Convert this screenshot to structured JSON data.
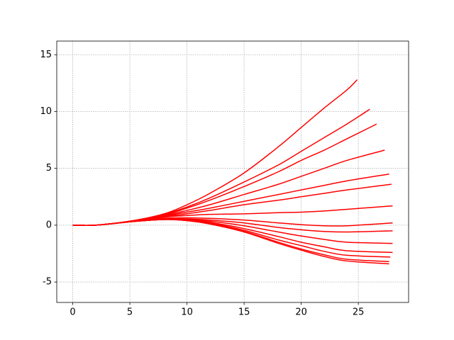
{
  "chart_data": {
    "type": "line",
    "color": "red",
    "grid": true,
    "xlim": [
      -1.4,
      29.4
    ],
    "ylim": [
      -6.8,
      16.2
    ],
    "xticks": [
      0,
      5,
      10,
      15,
      20,
      25
    ],
    "yticks": [
      -5,
      0,
      5,
      10,
      15
    ],
    "series": [
      {
        "x": [
          0,
          2,
          5,
          8,
          10,
          12,
          15,
          18,
          20,
          22,
          24,
          24.9
        ],
        "values": [
          0,
          0,
          0.35,
          1.0,
          1.8,
          2.8,
          4.6,
          6.9,
          8.6,
          10.3,
          11.9,
          12.8
        ]
      },
      {
        "x": [
          0,
          2,
          5,
          8,
          10,
          12,
          15,
          18,
          20,
          22,
          24,
          26
        ],
        "values": [
          0,
          0,
          0.35,
          0.95,
          1.6,
          2.4,
          3.8,
          5.3,
          6.5,
          7.7,
          8.9,
          10.2
        ]
      },
      {
        "x": [
          0,
          2,
          5,
          8,
          10,
          12,
          15,
          18,
          20,
          22,
          24,
          26.6
        ],
        "values": [
          0,
          0,
          0.35,
          0.9,
          1.5,
          2.2,
          3.4,
          4.7,
          5.7,
          6.6,
          7.6,
          8.9
        ]
      },
      {
        "x": [
          0,
          2,
          5,
          8,
          10,
          12,
          15,
          18,
          20,
          22,
          24,
          27.3
        ],
        "values": [
          0,
          0,
          0.33,
          0.85,
          1.3,
          1.8,
          2.7,
          3.6,
          4.3,
          5.0,
          5.7,
          6.6
        ]
      },
      {
        "x": [
          0,
          2,
          5,
          8,
          10,
          12,
          15,
          18,
          20,
          22,
          24,
          27.7
        ],
        "values": [
          0,
          0,
          0.32,
          0.8,
          1.15,
          1.5,
          2.1,
          2.7,
          3.1,
          3.5,
          3.9,
          4.5
        ]
      },
      {
        "x": [
          0,
          2,
          5,
          8,
          10,
          12,
          15,
          18,
          20,
          22,
          24,
          27.9
        ],
        "values": [
          0,
          0,
          0.32,
          0.75,
          1.0,
          1.3,
          1.8,
          2.2,
          2.5,
          2.8,
          3.1,
          3.6
        ]
      },
      {
        "x": [
          0,
          2,
          5,
          8,
          10,
          12,
          15,
          18,
          20,
          22,
          24,
          28
        ],
        "values": [
          0,
          0,
          0.3,
          0.7,
          0.85,
          0.95,
          1.0,
          1.1,
          1.15,
          1.25,
          1.4,
          1.7
        ]
      },
      {
        "x": [
          0,
          2,
          5,
          8,
          10,
          12,
          15,
          18,
          20,
          22,
          24,
          28
        ],
        "values": [
          0,
          0,
          0.3,
          0.6,
          0.65,
          0.6,
          0.45,
          0.2,
          0.05,
          -0.05,
          -0.05,
          0.2
        ]
      },
      {
        "x": [
          0,
          2,
          5,
          8,
          10,
          12,
          15,
          18,
          20,
          22,
          24,
          28
        ],
        "values": [
          0,
          0,
          0.3,
          0.55,
          0.55,
          0.45,
          0.2,
          -0.2,
          -0.4,
          -0.55,
          -0.6,
          -0.5
        ]
      },
      {
        "x": [
          0,
          2,
          5,
          8,
          10,
          12,
          15,
          18,
          20,
          22,
          24,
          28
        ],
        "values": [
          0,
          0,
          0.3,
          0.5,
          0.5,
          0.35,
          -0.05,
          -0.6,
          -0.95,
          -1.25,
          -1.5,
          -1.6
        ]
      },
      {
        "x": [
          0,
          2,
          5,
          8,
          10,
          12,
          15,
          18,
          20,
          22,
          24,
          28
        ],
        "values": [
          0,
          0,
          0.3,
          0.5,
          0.45,
          0.25,
          -0.3,
          -1.0,
          -1.5,
          -1.9,
          -2.25,
          -2.4
        ]
      },
      {
        "x": [
          0,
          2,
          5,
          8,
          10,
          12,
          15,
          18,
          20,
          22,
          24,
          27.8
        ],
        "values": [
          0,
          0,
          0.3,
          0.5,
          0.45,
          0.2,
          -0.45,
          -1.3,
          -1.8,
          -2.3,
          -2.65,
          -2.8
        ]
      },
      {
        "x": [
          0,
          2,
          5,
          8,
          10,
          12,
          15,
          18,
          20,
          22,
          24,
          27.7
        ],
        "values": [
          0,
          0,
          0.3,
          0.5,
          0.4,
          0.15,
          -0.55,
          -1.5,
          -2.1,
          -2.6,
          -3.0,
          -3.2
        ]
      },
      {
        "x": [
          0,
          2,
          5,
          8,
          10,
          12,
          15,
          18,
          20,
          22,
          24,
          27.7
        ],
        "values": [
          0,
          0,
          0.3,
          0.5,
          0.4,
          0.1,
          -0.6,
          -1.6,
          -2.2,
          -2.75,
          -3.15,
          -3.4
        ]
      }
    ]
  }
}
